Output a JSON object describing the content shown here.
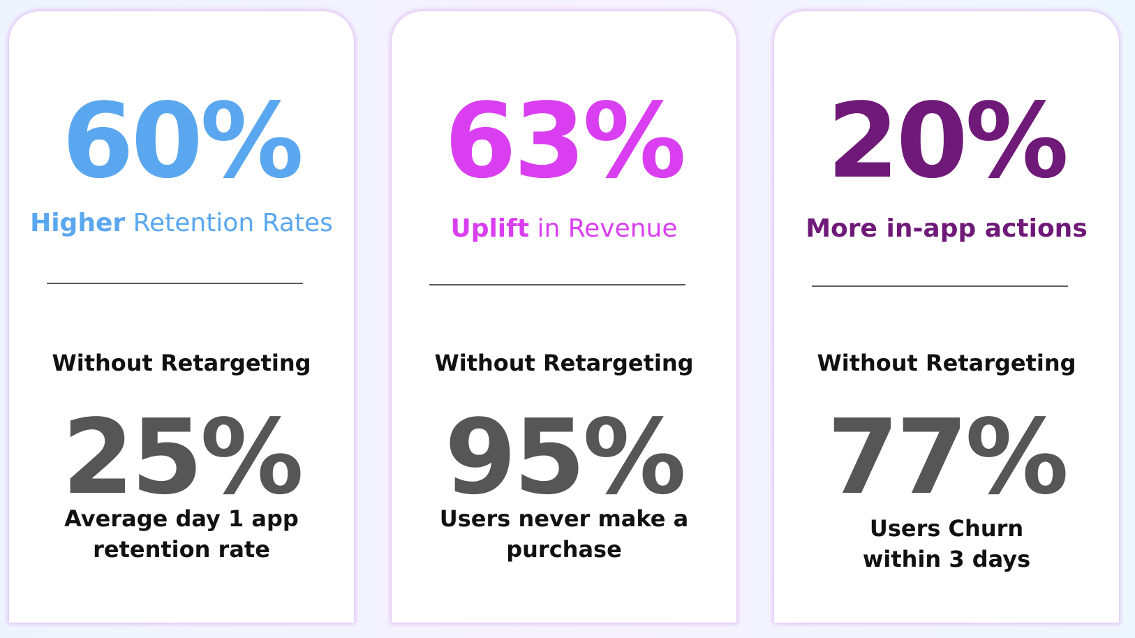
{
  "colors": {
    "card1_accent": "#5aa7ef",
    "card2_accent": "#d93ff0",
    "card3_accent": "#6f1a78",
    "baseline_stat": "#565656",
    "text_dark": "#111111"
  },
  "cards": [
    {
      "stat": "60%",
      "headline_strong": "Higher",
      "headline_rest": " Retention Rates",
      "subhead": "Without Retargeting",
      "baseline_stat": "25%",
      "caption_lines": [
        "Average day 1 app",
        "retention rate"
      ]
    },
    {
      "stat": "63%",
      "headline_strong": "Uplift",
      "headline_rest": " in Revenue",
      "subhead": "Without Retargeting",
      "baseline_stat": "95%",
      "caption_lines": [
        "Users never make a",
        "purchase"
      ]
    },
    {
      "stat": "20%",
      "headline_strong": "More in-app actions",
      "headline_rest": "",
      "subhead": "Without Retargeting",
      "baseline_stat": "77%",
      "caption_lines": [
        "Users Churn",
        "within 3 days"
      ]
    }
  ]
}
